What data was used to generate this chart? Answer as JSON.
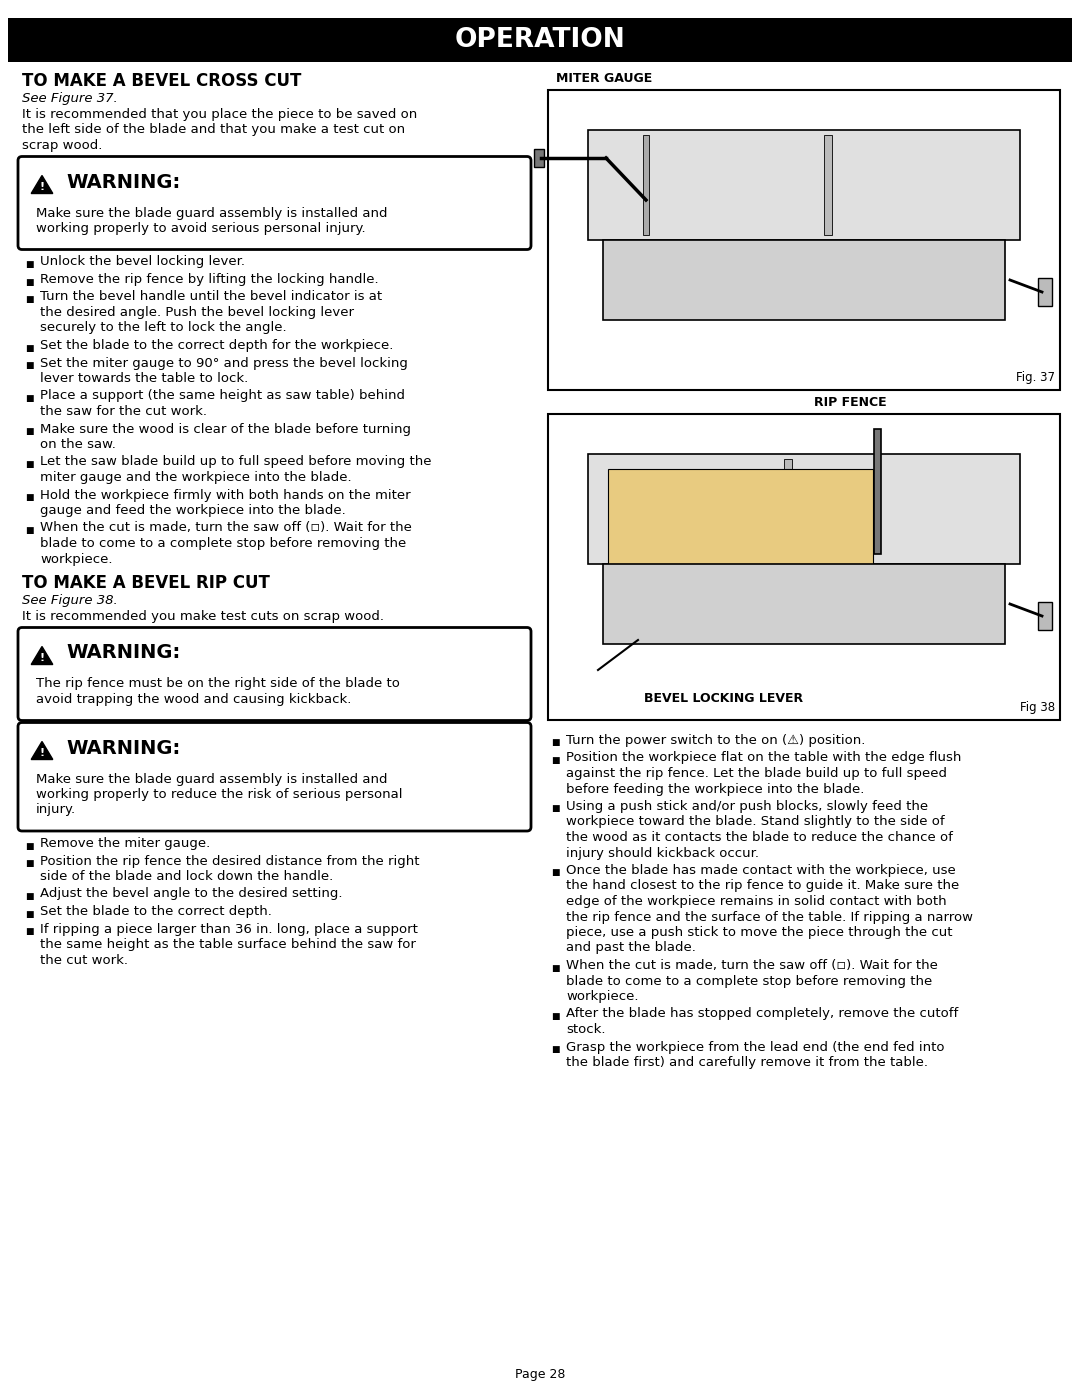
{
  "page_title": "OPERATION",
  "title_bg": "#000000",
  "title_fg": "#ffffff",
  "bg_color": "#ffffff",
  "text_color": "#000000",
  "section1_title": "TO MAKE A BEVEL CROSS CUT",
  "section1_subtitle": "See Figure 37.",
  "section1_intro": [
    "It is recommended that you place the piece to be saved on",
    "the left side of the blade and that you make a test cut on",
    "scrap wood."
  ],
  "warning1_body": [
    "Make sure the blade guard assembly is installed and",
    "working properly to avoid serious personal injury."
  ],
  "bullets_col1_sec1": [
    [
      "Unlock the bevel locking lever."
    ],
    [
      "Remove the rip fence by lifting the locking handle."
    ],
    [
      "Turn the bevel handle until the bevel indicator is at",
      "the desired angle. Push the bevel locking lever",
      "securely to the left to lock the angle."
    ],
    [
      "Set the blade to the correct depth for the workpiece."
    ],
    [
      "Set the miter gauge to 90° and press the bevel locking",
      "lever towards the table to lock."
    ],
    [
      "Place a support (the same height as saw table) behind",
      "the saw for the cut work."
    ],
    [
      "Make sure the wood is clear of the blade before turning",
      "on the saw."
    ],
    [
      "Let the saw blade build up to full speed before moving the",
      "miter gauge and the workpiece into the blade."
    ],
    [
      "Hold the workpiece firmly with both hands on the miter",
      "gauge and feed the workpiece into the blade."
    ],
    [
      "When the cut is made, turn the saw off (◽). Wait for the",
      "blade to come to a complete stop before removing the",
      "workpiece."
    ]
  ],
  "section2_title": "TO MAKE A BEVEL RIP CUT",
  "section2_subtitle": "See Figure 38.",
  "section2_intro": [
    "It is recommended you make test cuts on scrap wood."
  ],
  "warning2_body": [
    "The rip fence must be on the right side of the blade to",
    "avoid trapping the wood and causing kickback."
  ],
  "warning3_body": [
    "Make sure the blade guard assembly is installed and",
    "working properly to reduce the risk of serious personal",
    "injury."
  ],
  "bullets_col1_sec2": [
    [
      "Remove the miter gauge."
    ],
    [
      "Position the rip fence the desired distance from the right",
      "side of the blade and lock down the handle."
    ],
    [
      "Adjust the bevel angle to the desired setting."
    ],
    [
      "Set the blade to the correct depth."
    ],
    [
      "If ripping a piece larger than 36 in. long, place a support",
      "the same height as the table surface behind the saw for",
      "the cut work."
    ]
  ],
  "fig37_label": "MITER GAUGE",
  "fig37_caption": "Fig. 37",
  "fig38_label": "RIP FENCE",
  "fig38_label2": "BEVEL LOCKING LEVER",
  "fig38_caption": "Fig 38",
  "bullets_col2": [
    [
      "Turn the power switch to the on (⚠) position."
    ],
    [
      "Position the workpiece flat on the table with the edge flush",
      "against the rip fence. Let the blade build up to full speed",
      "before feeding the workpiece into the blade."
    ],
    [
      "Using a push stick and/or push blocks, slowly feed the",
      "workpiece toward the blade. Stand slightly to the side of",
      "the wood as it contacts the blade to reduce the chance of",
      "injury should kickback occur."
    ],
    [
      "Once the blade has made contact with the workpiece, use",
      "the hand closest to the rip fence to guide it. Make sure the",
      "edge of the workpiece remains in solid contact with both",
      "the rip fence and the surface of the table. If ripping a narrow",
      "piece, use a push stick to move the piece through the cut",
      "and past the blade."
    ],
    [
      "When the cut is made, turn the saw off (◽). Wait for the",
      "blade to come to a complete stop before removing the",
      "workpiece."
    ],
    [
      "After the blade has stopped completely, remove the cutoff",
      "stock."
    ],
    [
      "Grasp the workpiece from the lead end (the end fed into",
      "the blade first) and carefully remove it from the table."
    ]
  ],
  "page_number": "Page 28"
}
